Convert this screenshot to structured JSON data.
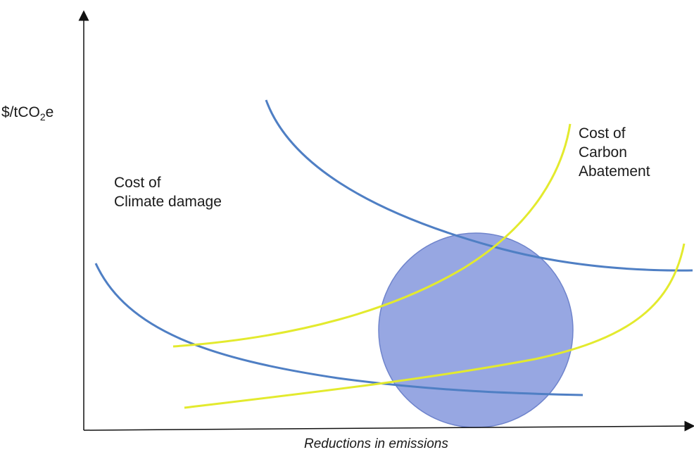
{
  "diagram": {
    "y_axis_label": {
      "prefix": "$/tCO",
      "subscript": "2",
      "suffix": "e"
    },
    "x_axis_label": "Reductions in emissions",
    "damage_label": [
      "Cost of",
      "Climate damage"
    ],
    "abatement_label": [
      "Cost of",
      "Carbon",
      "Abatement"
    ],
    "colors": {
      "damage_curve": "#4f7fc4",
      "abatement_curve": "#e3ea2e",
      "intersection_zone": "#8e9fe0",
      "axis": "#111111"
    }
  }
}
